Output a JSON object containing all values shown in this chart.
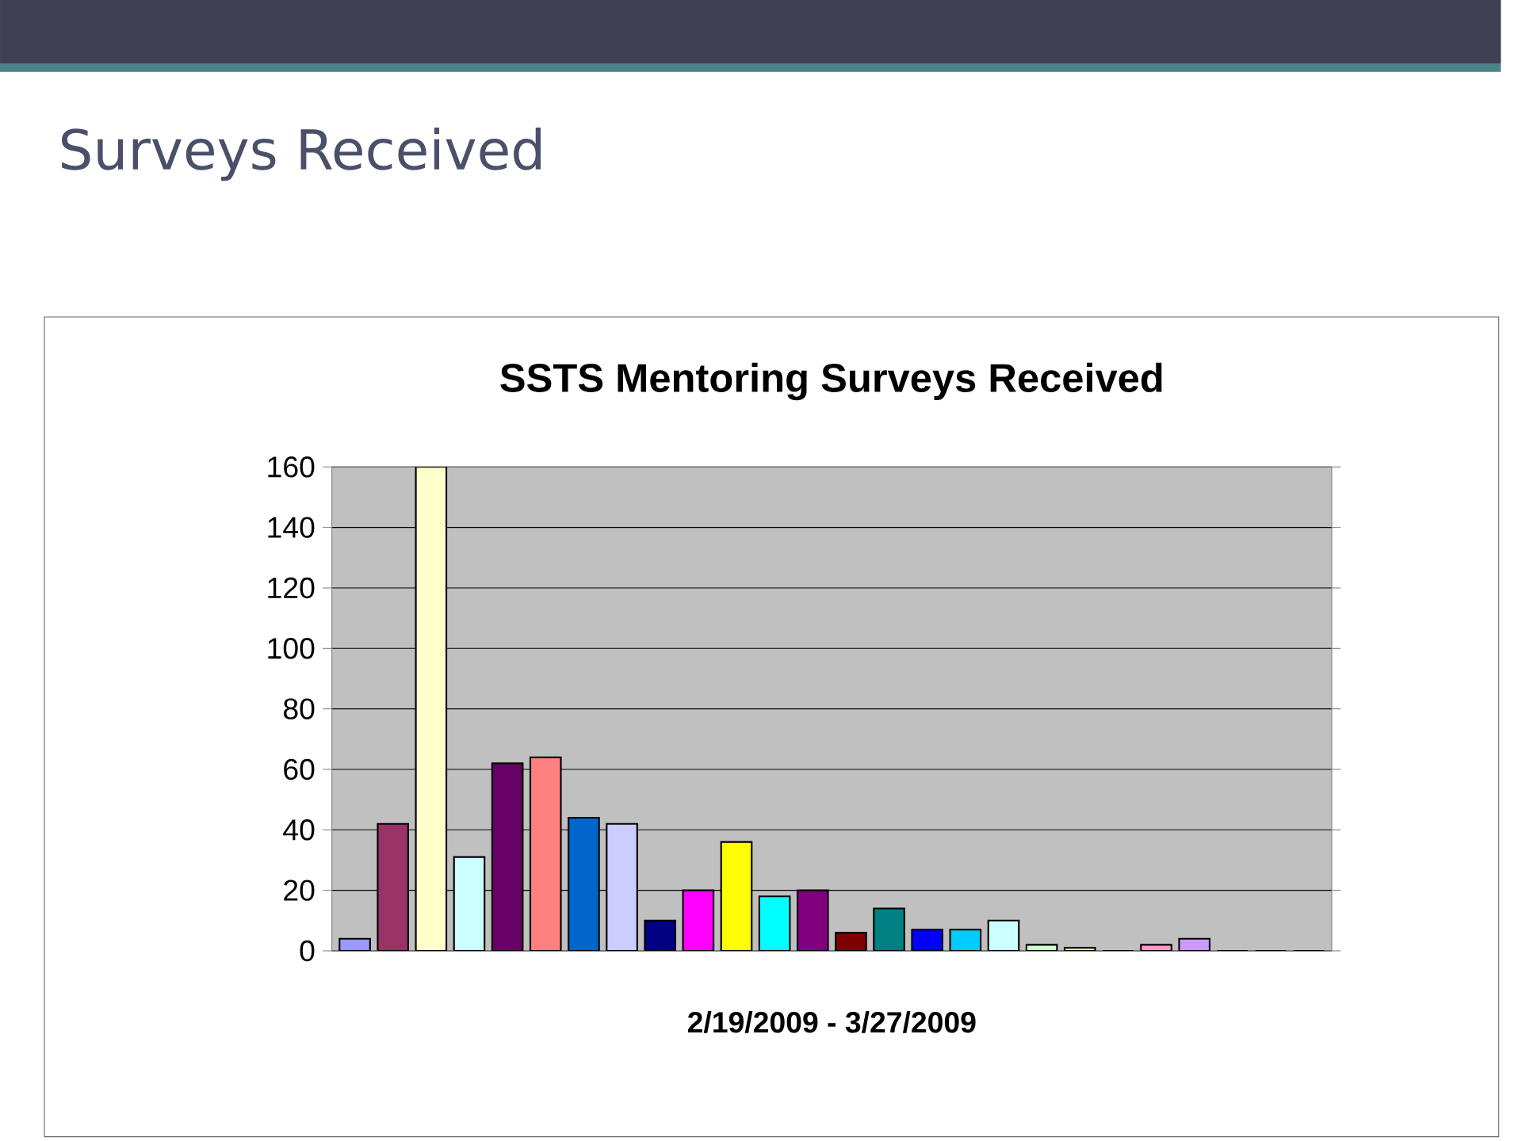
{
  "chart_data": {
    "type": "bar",
    "title": "SSTS Mentoring Surveys Received",
    "xlabel": "2/19/2009 - 3/27/2009",
    "annotations": [
      "Surveys Received"
    ],
    "categories": [
      null,
      null,
      null,
      null,
      null,
      null,
      null,
      null,
      null,
      null,
      null,
      null,
      null,
      null,
      null,
      null,
      null,
      null,
      null,
      null,
      null,
      null,
      null,
      null,
      null,
      null
    ],
    "values": [
      4,
      42,
      160,
      31,
      62,
      64,
      44,
      42,
      10,
      20,
      36,
      18,
      20,
      6,
      14,
      7,
      7,
      10,
      2,
      1,
      0,
      2,
      4,
      0,
      0,
      0
    ],
    "colors": [
      "#9999ff",
      "#993366",
      "#ffffcc",
      "#ccffff",
      "#660066",
      "#ff8080",
      "#0066cc",
      "#ccccff",
      "#000080",
      "#ff00ff",
      "#ffff00",
      "#00ffff",
      "#800080",
      "#800000",
      "#008080",
      "#0000ff",
      "#00ccff",
      "#ccffff",
      "#ccffcc",
      "#ffff99",
      "#99ccff",
      "#ff99cc",
      "#cc99ff",
      "#c0c0c0",
      "#3366ff",
      "#33cccc"
    ],
    "ylim": [
      0,
      160
    ],
    "yticks": [
      0,
      20,
      40,
      60,
      80,
      100,
      120,
      140,
      160
    ],
    "grid": "y"
  }
}
